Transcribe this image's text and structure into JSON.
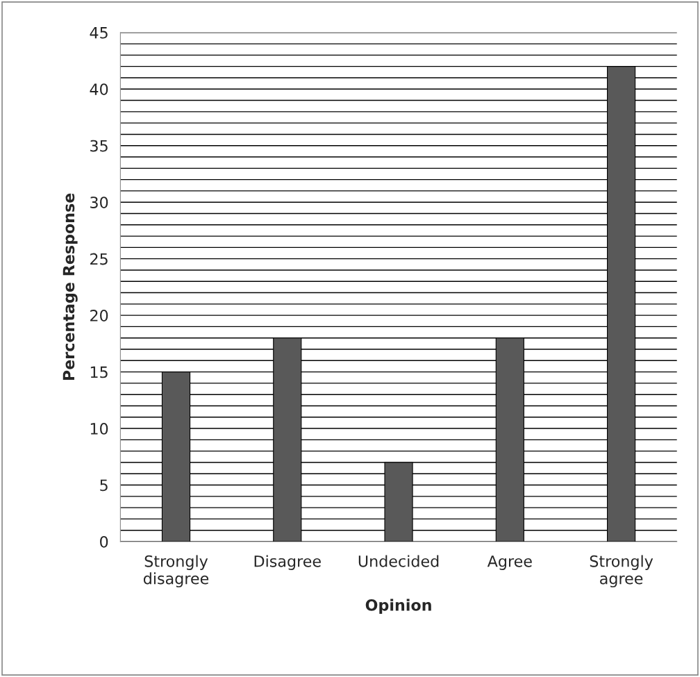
{
  "chart_data": {
    "type": "bar",
    "xlabel": "Opinion",
    "ylabel": "Percentage Response",
    "categories": [
      "Strongly\ndisagree",
      "Disagree",
      "Undecided",
      "Agree",
      "Strongly\nagree"
    ],
    "values": [
      15,
      18,
      7,
      18,
      42
    ],
    "color": "#595959",
    "ylim": [
      0,
      45
    ],
    "yticks": [
      0,
      {
        "value": 1,
        "label": null
      },
      {
        "value": 2,
        "label": null
      },
      {
        "value": 3,
        "label": null
      },
      {
        "value": 4,
        "label": null
      },
      5,
      {
        "value": 6,
        "label": null
      },
      {
        "value": 7,
        "label": null
      },
      {
        "value": 8,
        "label": null
      },
      {
        "value": 9,
        "label": null
      },
      10,
      {
        "value": 11,
        "label": null
      },
      {
        "value": 12,
        "label": null
      },
      {
        "value": 13,
        "label": null
      },
      {
        "value": 14,
        "label": null
      },
      15,
      {
        "value": 16,
        "label": null
      },
      {
        "value": 17,
        "label": null
      },
      {
        "value": 18,
        "label": null
      },
      {
        "value": 19,
        "label": null
      },
      20,
      {
        "value": 21,
        "label": null
      },
      {
        "value": 22,
        "label": null
      },
      {
        "value": 23,
        "label": null
      },
      {
        "value": 24,
        "label": null
      },
      25,
      {
        "value": 26,
        "label": null
      },
      {
        "value": 27,
        "label": null
      },
      {
        "value": 28,
        "label": null
      },
      {
        "value": 29,
        "label": null
      },
      30,
      {
        "value": 31,
        "label": null
      },
      {
        "value": 32,
        "label": null
      },
      {
        "value": 33,
        "label": null
      },
      {
        "value": 34,
        "label": null
      },
      35,
      {
        "value": 36,
        "label": null
      },
      {
        "value": 37,
        "label": null
      },
      {
        "value": 38,
        "label": null
      },
      {
        "value": 39,
        "label": null
      },
      40,
      {
        "value": 41,
        "label": null
      },
      {
        "value": 42,
        "label": null
      },
      {
        "value": 43,
        "label": null
      },
      {
        "value": 44,
        "label": null
      },
      45
    ],
    "grid": "y",
    "legend": false
  }
}
